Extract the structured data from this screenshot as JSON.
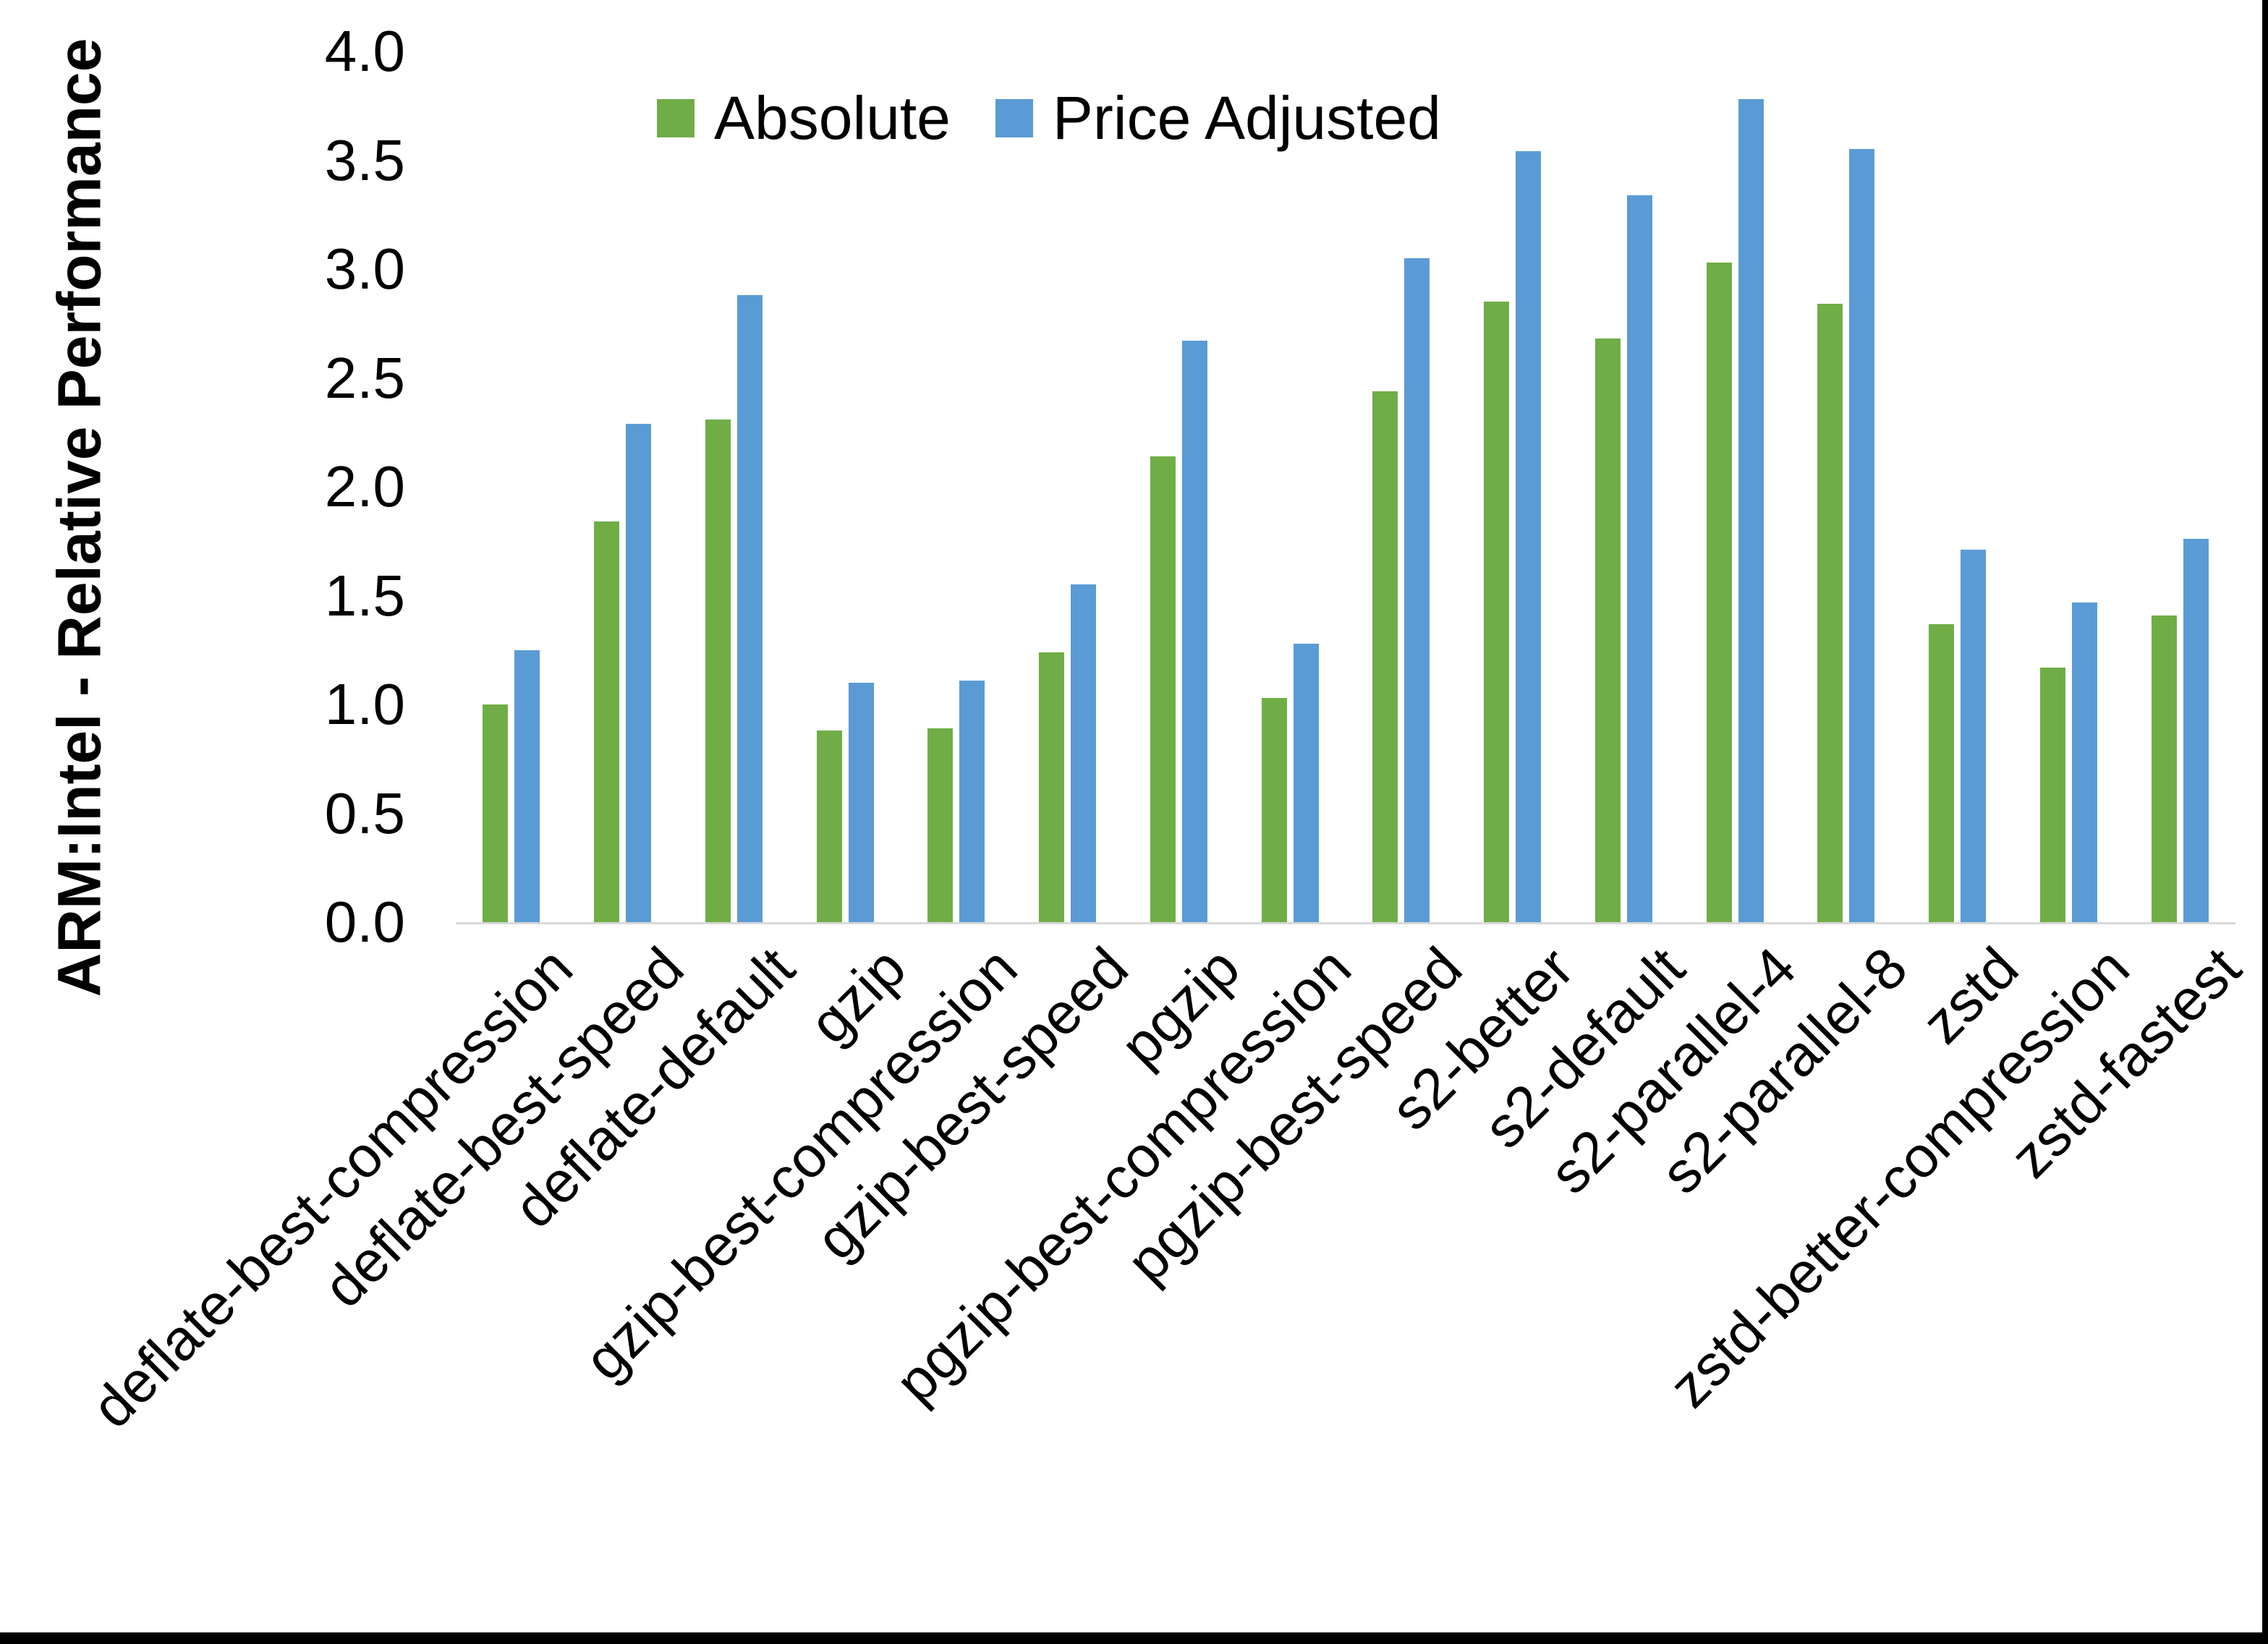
{
  "chart_data": {
    "type": "bar",
    "title": "",
    "xlabel": "",
    "ylabel": "ARM:Intel - Relative Performance",
    "ylim": [
      0.0,
      4.0
    ],
    "ytick_step": 0.5,
    "ytick_labels": [
      "0.0",
      "0.5",
      "1.0",
      "1.5",
      "2.0",
      "2.5",
      "3.0",
      "3.5",
      "4.0"
    ],
    "grid": false,
    "legend_position": "top-center",
    "categories": [
      "deflate-best-compression",
      "deflate-best-speed",
      "deflate-default",
      "gzip",
      "gzip-best-compression",
      "gzip-best-speed",
      "pgzip",
      "pgzip-best-compression",
      "pgzip-best-speed",
      "s2-better",
      "s2-default",
      "s2-parallel-4",
      "s2-parallel-8",
      "zstd",
      "zstd-better-compression",
      "zstd-fastest"
    ],
    "series": [
      {
        "name": "Absolute",
        "color": "#70AD47",
        "values": [
          1.0,
          1.84,
          2.31,
          0.88,
          0.89,
          1.24,
          2.14,
          1.03,
          2.44,
          2.85,
          2.68,
          3.03,
          2.84,
          1.37,
          1.17,
          1.41
        ]
      },
      {
        "name": "Price Adjusted",
        "color": "#5B9BD5",
        "values": [
          1.25,
          2.29,
          2.88,
          1.1,
          1.11,
          1.55,
          2.67,
          1.28,
          3.05,
          3.54,
          3.34,
          3.78,
          3.55,
          1.71,
          1.47,
          1.76
        ]
      }
    ]
  },
  "colors": {
    "axis_line": "#D9D9D9",
    "text": "#000000",
    "background": "#FFFFFF",
    "screenshot_border": "#000000"
  }
}
